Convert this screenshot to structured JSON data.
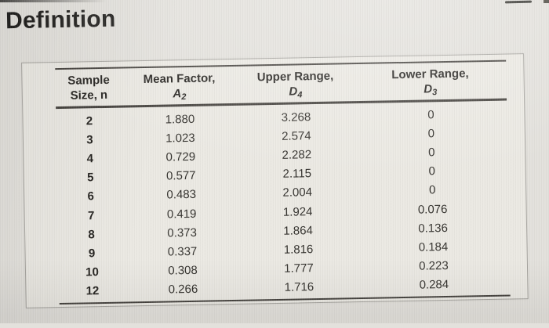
{
  "title": "Definition",
  "table": {
    "col_headers": [
      {
        "top": "Sample",
        "bottom": "Size, n"
      },
      {
        "top": "Mean Factor,",
        "symbol": "A",
        "sub": "2"
      },
      {
        "top": "Upper Range,",
        "symbol": "D",
        "sub": "4"
      },
      {
        "top": "Lower Range,",
        "symbol": "D",
        "sub": "3"
      }
    ],
    "columns_order": [
      "n",
      "a2",
      "d4",
      "d3"
    ],
    "rows": [
      {
        "n": "2",
        "a2": "1.880",
        "d4": "3.268",
        "d3": "0"
      },
      {
        "n": "3",
        "a2": "1.023",
        "d4": "2.574",
        "d3": "0"
      },
      {
        "n": "4",
        "a2": "0.729",
        "d4": "2.282",
        "d3": "0"
      },
      {
        "n": "5",
        "a2": "0.577",
        "d4": "2.115",
        "d3": "0"
      },
      {
        "n": "6",
        "a2": "0.483",
        "d4": "2.004",
        "d3": "0"
      },
      {
        "n": "7",
        "a2": "0.419",
        "d4": "1.924",
        "d3": "0.076"
      },
      {
        "n": "8",
        "a2": "0.373",
        "d4": "1.864",
        "d3": "0.136"
      },
      {
        "n": "9",
        "a2": "0.337",
        "d4": "1.816",
        "d3": "0.184"
      },
      {
        "n": "10",
        "a2": "0.308",
        "d4": "1.777",
        "d3": "0.223"
      },
      {
        "n": "12",
        "a2": "0.266",
        "d4": "1.716",
        "d3": "0.284"
      }
    ]
  },
  "colors": {
    "background": "#e3e1dc",
    "panel_background": "#ebe9e3",
    "panel_border": "#a7a5a0",
    "rule": "#45423e",
    "text": "#2c2a27",
    "title_text": "#1d1c1a"
  }
}
